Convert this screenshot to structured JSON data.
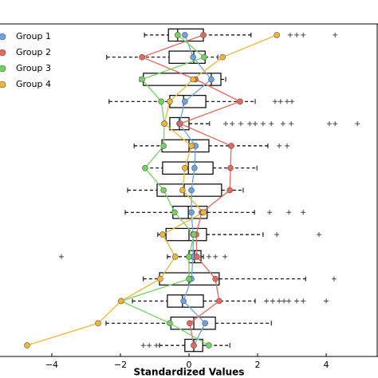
{
  "chart_data": {
    "type": "boxplot",
    "xlabel": "Standardized Values",
    "xlim": [
      -5.51,
      5.51
    ],
    "xticks": [
      {
        "value": -4,
        "label": "−4"
      },
      {
        "value": -2,
        "label": "−2"
      },
      0,
      2,
      4
    ],
    "categories": [
      null,
      null,
      null,
      null,
      null,
      null,
      null,
      null,
      null,
      null,
      null,
      null,
      null,
      null,
      null
    ],
    "legend": "upper left",
    "boxes": [
      {
        "low": -1.3,
        "q1": -0.6,
        "median": -0.33,
        "q3": 0.42,
        "high": 1.81,
        "outliers": [
          2.95,
          3.14,
          3.33,
          4.26
        ]
      },
      {
        "low": -2.4,
        "q1": -0.58,
        "median": 0.14,
        "q3": 0.47,
        "high": 0.84,
        "outliers": []
      },
      {
        "low": -1.44,
        "q1": -1.33,
        "median": 0.65,
        "q3": 0.93,
        "high": 1.07,
        "outliers": []
      },
      {
        "low": -2.33,
        "q1": -0.56,
        "median": -0.16,
        "q3": 0.49,
        "high": 1.93,
        "outliers": [
          2.51,
          2.67,
          2.86,
          3.0
        ]
      },
      {
        "low": -0.74,
        "q1": -0.56,
        "median": -0.28,
        "q3": 0.0,
        "high": 0.6,
        "outliers": [
          1.07,
          1.26,
          1.51,
          1.77,
          1.93,
          2.16,
          2.4,
          2.74,
          2.98,
          4.09,
          4.26,
          4.91
        ]
      },
      {
        "low": -1.6,
        "q1": -0.79,
        "median": 0.0,
        "q3": 0.58,
        "high": 2.3,
        "outliers": [
          2.63,
          2.86
        ]
      },
      {
        "low": -1.3,
        "q1": -0.77,
        "median": -0.02,
        "q3": 0.7,
        "high": 1.98,
        "outliers": []
      },
      {
        "low": -1.79,
        "q1": -0.93,
        "median": -0.14,
        "q3": 0.95,
        "high": 1.58,
        "outliers": []
      },
      {
        "low": -1.86,
        "q1": -0.47,
        "median": -0.02,
        "q3": 0.53,
        "high": 1.91,
        "outliers": [
          2.35,
          2.91,
          3.33
        ]
      },
      {
        "low": -0.91,
        "q1": -0.67,
        "median": 0.0,
        "q3": 0.51,
        "high": 2.16,
        "outliers": [
          2.56,
          3.79
        ]
      },
      {
        "low": -0.63,
        "q1": 0.0,
        "median": 0.16,
        "q3": 0.35,
        "high": 0.42,
        "outliers": [
          -3.72,
          0.58,
          0.77,
          1.05
        ]
      },
      {
        "low": -1.33,
        "q1": -0.86,
        "median": 0.0,
        "q3": 0.88,
        "high": 3.4,
        "outliers": [
          4.23
        ]
      },
      {
        "low": -1.65,
        "q1": -0.63,
        "median": -0.19,
        "q3": 0.42,
        "high": 1.93,
        "outliers": [
          2.26,
          2.44,
          2.63,
          2.77,
          2.91,
          3.14,
          3.33,
          4.0
        ]
      },
      {
        "low": -2.42,
        "q1": -0.53,
        "median": 0.14,
        "q3": 0.77,
        "high": 2.4,
        "outliers": []
      },
      {
        "low": -0.86,
        "q1": -0.12,
        "median": 0.14,
        "q3": 0.4,
        "high": 1.19,
        "outliers": [
          -1.33,
          -1.16,
          -0.95
        ]
      }
    ],
    "series": [
      {
        "name": "Group 1",
        "color": "#6aa5e0",
        "values": [
          -0.12,
          0.12,
          0.65,
          -0.12,
          -0.28,
          0.19,
          0.16,
          0.07,
          0.07,
          0.12,
          0.12,
          0.07,
          -0.16,
          0.47,
          0.14
        ]
      },
      {
        "name": "Group 2",
        "color": "#e8675a",
        "values": [
          0.42,
          -1.37,
          0.19,
          1.49,
          -0.26,
          1.23,
          1.21,
          1.19,
          0.37,
          0.21,
          0.23,
          0.77,
          0.88,
          0.02,
          0.14
        ]
      },
      {
        "name": "Group 3",
        "color": "#72d45e",
        "values": [
          -0.33,
          0.44,
          -1.37,
          -0.81,
          -0.72,
          -0.74,
          -1.28,
          -0.74,
          -0.42,
          0.14,
          0.0,
          0.0,
          -1.98,
          -0.56,
          0.58
        ]
      },
      {
        "name": "Group 4",
        "color": "#f2b534",
        "values": [
          2.56,
          0.98,
          0.12,
          -0.56,
          -0.72,
          0.07,
          -0.12,
          -0.19,
          0.42,
          -0.77,
          -0.4,
          -0.84,
          -1.98,
          -2.65,
          -4.72
        ]
      }
    ]
  }
}
